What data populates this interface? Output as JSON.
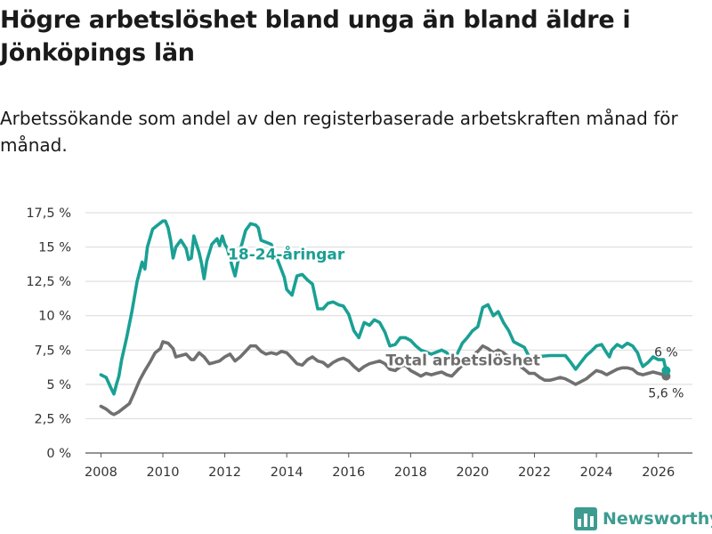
{
  "chart_data": {
    "type": "line",
    "title": "Högre arbetslöshet bland unga än bland äldre i Jönköpings län",
    "subtitle": "Arbetssökande som andel av den registerbaserade arbetskraften månad för månad.",
    "xlabel": "",
    "ylabel": "",
    "xlim": [
      2007.5,
      2027.1
    ],
    "ylim": [
      0,
      17.5
    ],
    "x_ticks": [
      2008,
      2010,
      2012,
      2014,
      2016,
      2018,
      2020,
      2022,
      2024,
      2026
    ],
    "x_tick_labels": [
      "2008",
      "2010",
      "2012",
      "2014",
      "2016",
      "2018",
      "2020",
      "2022",
      "2024",
      "2026"
    ],
    "y_ticks": [
      0,
      2.5,
      5,
      7.5,
      10,
      12.5,
      15,
      17.5
    ],
    "y_tick_labels": [
      "0 %",
      "2,5 %",
      "5 %",
      "7,5 %",
      "10 %",
      "12,5 %",
      "15 %",
      "17,5 %"
    ],
    "grid": true,
    "series": [
      {
        "name": "18-24-åringar",
        "label": "18-24-åringar",
        "color": "#1aa094",
        "end_label": "6 %",
        "points": [
          [
            2008.0,
            5.7
          ],
          [
            2008.17,
            5.5
          ],
          [
            2008.33,
            4.7
          ],
          [
            2008.42,
            4.3
          ],
          [
            2008.5,
            5.0
          ],
          [
            2008.58,
            5.6
          ],
          [
            2008.67,
            6.8
          ],
          [
            2008.83,
            8.4
          ],
          [
            2009.0,
            10.3
          ],
          [
            2009.17,
            12.5
          ],
          [
            2009.33,
            13.9
          ],
          [
            2009.42,
            13.4
          ],
          [
            2009.5,
            15.0
          ],
          [
            2009.67,
            16.3
          ],
          [
            2009.83,
            16.6
          ],
          [
            2010.0,
            16.9
          ],
          [
            2010.08,
            16.9
          ],
          [
            2010.17,
            16.4
          ],
          [
            2010.25,
            15.5
          ],
          [
            2010.33,
            14.2
          ],
          [
            2010.42,
            15.0
          ],
          [
            2010.58,
            15.5
          ],
          [
            2010.75,
            14.9
          ],
          [
            2010.83,
            14.1
          ],
          [
            2010.92,
            14.2
          ],
          [
            2011.0,
            15.8
          ],
          [
            2011.17,
            14.6
          ],
          [
            2011.25,
            13.8
          ],
          [
            2011.33,
            12.7
          ],
          [
            2011.42,
            14.0
          ],
          [
            2011.58,
            15.2
          ],
          [
            2011.75,
            15.6
          ],
          [
            2011.83,
            15.1
          ],
          [
            2011.92,
            15.8
          ],
          [
            2012.0,
            15.2
          ],
          [
            2012.08,
            14.9
          ],
          [
            2012.25,
            13.5
          ],
          [
            2012.33,
            12.9
          ],
          [
            2012.5,
            14.8
          ],
          [
            2012.67,
            16.2
          ],
          [
            2012.83,
            16.7
          ],
          [
            2013.0,
            16.6
          ],
          [
            2013.08,
            16.4
          ],
          [
            2013.17,
            15.5
          ],
          [
            2013.5,
            15.2
          ],
          [
            2013.75,
            13.8
          ],
          [
            2013.92,
            12.8
          ],
          [
            2014.0,
            11.9
          ],
          [
            2014.17,
            11.5
          ],
          [
            2014.33,
            12.9
          ],
          [
            2014.5,
            13.0
          ],
          [
            2014.67,
            12.6
          ],
          [
            2014.83,
            12.3
          ],
          [
            2015.0,
            10.5
          ],
          [
            2015.17,
            10.5
          ],
          [
            2015.33,
            10.9
          ],
          [
            2015.5,
            11.0
          ],
          [
            2015.67,
            10.8
          ],
          [
            2015.83,
            10.7
          ],
          [
            2016.0,
            10.1
          ],
          [
            2016.17,
            8.9
          ],
          [
            2016.33,
            8.4
          ],
          [
            2016.5,
            9.5
          ],
          [
            2016.67,
            9.3
          ],
          [
            2016.83,
            9.7
          ],
          [
            2017.0,
            9.5
          ],
          [
            2017.17,
            8.8
          ],
          [
            2017.33,
            7.8
          ],
          [
            2017.5,
            7.9
          ],
          [
            2017.67,
            8.4
          ],
          [
            2017.83,
            8.4
          ],
          [
            2018.0,
            8.2
          ],
          [
            2018.17,
            7.8
          ],
          [
            2018.33,
            7.5
          ],
          [
            2018.67,
            7.2
          ],
          [
            2019.0,
            7.5
          ],
          [
            2019.17,
            7.3
          ],
          [
            2019.33,
            6.8
          ],
          [
            2019.5,
            7.2
          ],
          [
            2019.67,
            8.0
          ],
          [
            2019.83,
            8.4
          ],
          [
            2020.0,
            8.9
          ],
          [
            2020.17,
            9.2
          ],
          [
            2020.33,
            10.6
          ],
          [
            2020.5,
            10.8
          ],
          [
            2020.67,
            10.0
          ],
          [
            2020.83,
            10.3
          ],
          [
            2021.0,
            9.5
          ],
          [
            2021.17,
            8.9
          ],
          [
            2021.33,
            8.1
          ],
          [
            2021.5,
            7.9
          ],
          [
            2021.67,
            7.7
          ],
          [
            2021.83,
            7.0
          ],
          [
            2022.0,
            7.0
          ],
          [
            2022.5,
            7.1
          ],
          [
            2022.83,
            7.1
          ],
          [
            2023.0,
            7.1
          ],
          [
            2023.17,
            6.6
          ],
          [
            2023.33,
            6.1
          ],
          [
            2023.5,
            6.6
          ],
          [
            2023.67,
            7.1
          ],
          [
            2023.83,
            7.4
          ],
          [
            2024.0,
            7.8
          ],
          [
            2024.17,
            7.9
          ],
          [
            2024.33,
            7.3
          ],
          [
            2024.42,
            7.0
          ],
          [
            2024.5,
            7.5
          ],
          [
            2024.67,
            7.9
          ],
          [
            2024.83,
            7.7
          ],
          [
            2025.0,
            8.0
          ],
          [
            2025.17,
            7.8
          ],
          [
            2025.33,
            7.3
          ],
          [
            2025.42,
            6.7
          ],
          [
            2025.5,
            6.3
          ],
          [
            2025.67,
            6.6
          ],
          [
            2025.83,
            7.0
          ],
          [
            2026.0,
            6.8
          ],
          [
            2026.17,
            6.8
          ],
          [
            2026.25,
            6.0
          ]
        ]
      },
      {
        "name": "Total arbetslöshet",
        "label": "Total arbetslöshet",
        "color": "#707070",
        "end_label": "5,6 %",
        "points": [
          [
            2008.0,
            3.4
          ],
          [
            2008.17,
            3.2
          ],
          [
            2008.33,
            2.9
          ],
          [
            2008.42,
            2.8
          ],
          [
            2008.58,
            3.0
          ],
          [
            2008.75,
            3.3
          ],
          [
            2008.92,
            3.6
          ],
          [
            2009.08,
            4.4
          ],
          [
            2009.25,
            5.3
          ],
          [
            2009.42,
            6.0
          ],
          [
            2009.58,
            6.6
          ],
          [
            2009.75,
            7.3
          ],
          [
            2009.92,
            7.6
          ],
          [
            2010.0,
            8.1
          ],
          [
            2010.17,
            8.0
          ],
          [
            2010.33,
            7.6
          ],
          [
            2010.42,
            7.0
          ],
          [
            2010.58,
            7.1
          ],
          [
            2010.75,
            7.2
          ],
          [
            2010.92,
            6.8
          ],
          [
            2011.0,
            6.8
          ],
          [
            2011.17,
            7.3
          ],
          [
            2011.33,
            7.0
          ],
          [
            2011.5,
            6.5
          ],
          [
            2011.67,
            6.6
          ],
          [
            2011.83,
            6.7
          ],
          [
            2012.0,
            7.0
          ],
          [
            2012.17,
            7.2
          ],
          [
            2012.33,
            6.7
          ],
          [
            2012.5,
            7.0
          ],
          [
            2012.67,
            7.4
          ],
          [
            2012.83,
            7.8
          ],
          [
            2013.0,
            7.8
          ],
          [
            2013.17,
            7.4
          ],
          [
            2013.33,
            7.2
          ],
          [
            2013.5,
            7.3
          ],
          [
            2013.67,
            7.2
          ],
          [
            2013.83,
            7.4
          ],
          [
            2014.0,
            7.3
          ],
          [
            2014.17,
            6.9
          ],
          [
            2014.33,
            6.5
          ],
          [
            2014.5,
            6.4
          ],
          [
            2014.67,
            6.8
          ],
          [
            2014.83,
            7.0
          ],
          [
            2015.0,
            6.7
          ],
          [
            2015.17,
            6.6
          ],
          [
            2015.33,
            6.3
          ],
          [
            2015.5,
            6.6
          ],
          [
            2015.67,
            6.8
          ],
          [
            2015.83,
            6.9
          ],
          [
            2016.0,
            6.7
          ],
          [
            2016.17,
            6.3
          ],
          [
            2016.33,
            6.0
          ],
          [
            2016.5,
            6.3
          ],
          [
            2016.67,
            6.5
          ],
          [
            2016.83,
            6.6
          ],
          [
            2017.0,
            6.7
          ],
          [
            2017.17,
            6.5
          ],
          [
            2017.33,
            6.1
          ],
          [
            2017.5,
            6.0
          ],
          [
            2017.67,
            6.3
          ],
          [
            2017.83,
            6.4
          ],
          [
            2018.0,
            6.0
          ],
          [
            2018.17,
            5.8
          ],
          [
            2018.33,
            5.6
          ],
          [
            2018.5,
            5.8
          ],
          [
            2018.67,
            5.7
          ],
          [
            2018.83,
            5.8
          ],
          [
            2019.0,
            5.9
          ],
          [
            2019.17,
            5.7
          ],
          [
            2019.33,
            5.6
          ],
          [
            2019.5,
            6.0
          ],
          [
            2019.67,
            6.4
          ],
          [
            2019.83,
            6.8
          ],
          [
            2020.0,
            7.1
          ],
          [
            2020.17,
            7.4
          ],
          [
            2020.33,
            7.8
          ],
          [
            2020.5,
            7.6
          ],
          [
            2020.67,
            7.3
          ],
          [
            2020.83,
            7.5
          ],
          [
            2021.0,
            7.3
          ],
          [
            2021.17,
            7.0
          ],
          [
            2021.33,
            6.6
          ],
          [
            2021.5,
            6.4
          ],
          [
            2021.67,
            6.1
          ],
          [
            2021.83,
            5.8
          ],
          [
            2022.0,
            5.8
          ],
          [
            2022.17,
            5.5
          ],
          [
            2022.33,
            5.3
          ],
          [
            2022.5,
            5.3
          ],
          [
            2022.67,
            5.4
          ],
          [
            2022.83,
            5.5
          ],
          [
            2023.0,
            5.4
          ],
          [
            2023.17,
            5.2
          ],
          [
            2023.33,
            5.0
          ],
          [
            2023.5,
            5.2
          ],
          [
            2023.67,
            5.4
          ],
          [
            2023.83,
            5.7
          ],
          [
            2024.0,
            6.0
          ],
          [
            2024.17,
            5.9
          ],
          [
            2024.33,
            5.7
          ],
          [
            2024.5,
            5.9
          ],
          [
            2024.67,
            6.1
          ],
          [
            2024.83,
            6.2
          ],
          [
            2025.0,
            6.2
          ],
          [
            2025.17,
            6.1
          ],
          [
            2025.33,
            5.8
          ],
          [
            2025.5,
            5.7
          ],
          [
            2025.67,
            5.8
          ],
          [
            2025.83,
            5.9
          ],
          [
            2026.0,
            5.8
          ],
          [
            2026.17,
            5.7
          ],
          [
            2026.25,
            5.6
          ]
        ]
      }
    ],
    "annotations": [
      "18-24-åringar",
      "Total arbetslöshet"
    ]
  },
  "branding": {
    "name": "Newsworthy",
    "color": "#3d9c90",
    "icon": "bar-chart-logo-icon"
  }
}
